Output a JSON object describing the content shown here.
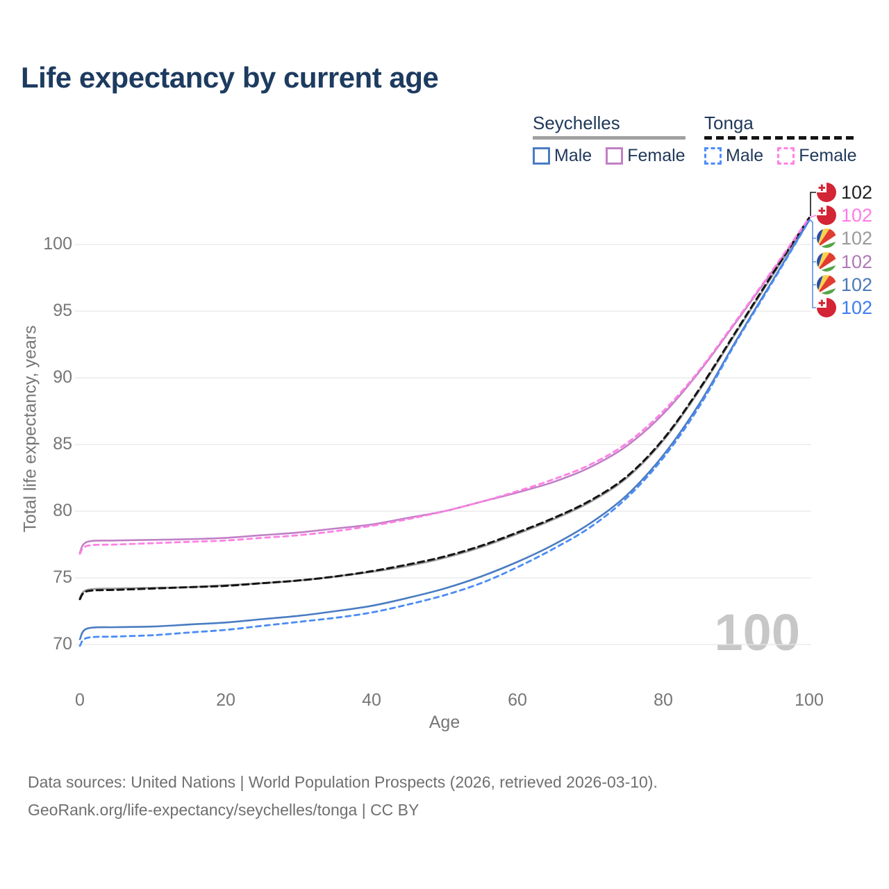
{
  "legend": {
    "groups": [
      {
        "label": "Seychelles",
        "line_style": "solid",
        "underline_color": "#a0a0a0",
        "items": [
          {
            "label": "Male",
            "color": "#4a7cc2"
          },
          {
            "label": "Female",
            "color": "#c17fc6"
          }
        ]
      },
      {
        "label": "Tonga",
        "line_style": "dashed",
        "underline_color": "#141414",
        "items": [
          {
            "label": "Male",
            "color": "#4b8cf5"
          },
          {
            "label": "Female",
            "color": "#ff80e4"
          }
        ]
      }
    ]
  },
  "chart_data": {
    "type": "line",
    "title": "Life expectancy by current age",
    "xlabel": "Age",
    "ylabel": "Total life expectancy, years",
    "xlim": [
      0,
      100
    ],
    "ylim": [
      69,
      103
    ],
    "xticks": [
      0,
      20,
      40,
      60,
      80,
      100
    ],
    "yticks": [
      70,
      75,
      80,
      85,
      90,
      95,
      100
    ],
    "grid": "horizontal",
    "legend_position": "top-right",
    "watermark": "100",
    "ages": [
      0,
      1,
      5,
      10,
      15,
      20,
      25,
      30,
      35,
      40,
      45,
      50,
      55,
      60,
      65,
      70,
      75,
      80,
      85,
      90,
      95,
      100
    ],
    "series": [
      {
        "name": "Seychelles Both sexes",
        "country": "Seychelles",
        "line": "solid",
        "color": "#9d9d9d",
        "width": 2.8,
        "values": [
          73.5,
          74.1,
          74.2,
          74.25,
          74.3,
          74.45,
          74.6,
          74.8,
          75.1,
          75.45,
          75.9,
          76.5,
          77.3,
          78.3,
          79.4,
          80.7,
          82.5,
          85.3,
          89.1,
          93.4,
          97.7,
          101.9
        ]
      },
      {
        "name": "Seychelles Female",
        "country": "Seychelles",
        "line": "solid",
        "color": "#c17fc6",
        "width": 2.6,
        "values": [
          76.9,
          77.7,
          77.8,
          77.85,
          77.9,
          78.0,
          78.2,
          78.4,
          78.7,
          79.0,
          79.5,
          80.0,
          80.7,
          81.4,
          82.2,
          83.3,
          84.9,
          87.3,
          90.5,
          94.2,
          98.0,
          101.9
        ]
      },
      {
        "name": "Seychelles Male",
        "country": "Seychelles",
        "line": "solid",
        "color": "#4a7cc2",
        "width": 2.6,
        "values": [
          70.4,
          71.2,
          71.3,
          71.35,
          71.5,
          71.65,
          71.9,
          72.15,
          72.5,
          72.9,
          73.5,
          74.2,
          75.1,
          76.2,
          77.5,
          79.1,
          81.2,
          84.2,
          88.1,
          92.8,
          97.3,
          101.8
        ]
      },
      {
        "name": "Tonga Both sexes",
        "country": "Tonga",
        "line": "dashed",
        "color": "#141414",
        "width": 3.0,
        "values": [
          73.4,
          74.0,
          74.1,
          74.2,
          74.3,
          74.4,
          74.6,
          74.8,
          75.1,
          75.5,
          76.0,
          76.6,
          77.4,
          78.4,
          79.5,
          80.8,
          82.6,
          85.4,
          89.2,
          93.5,
          97.8,
          102.0
        ]
      },
      {
        "name": "Tonga Female",
        "country": "Tonga",
        "line": "dashed",
        "color": "#ff80e4",
        "width": 2.8,
        "values": [
          76.8,
          77.4,
          77.5,
          77.6,
          77.7,
          77.8,
          78.0,
          78.2,
          78.5,
          78.9,
          79.4,
          80.0,
          80.7,
          81.5,
          82.4,
          83.5,
          85.1,
          87.5,
          90.6,
          94.3,
          98.1,
          102.0
        ]
      },
      {
        "name": "Tonga Male",
        "country": "Tonga",
        "line": "dashed",
        "color": "#4b8cf5",
        "width": 2.8,
        "values": [
          69.9,
          70.5,
          70.6,
          70.7,
          70.9,
          71.1,
          71.4,
          71.7,
          72.0,
          72.4,
          73.0,
          73.7,
          74.6,
          75.8,
          77.2,
          78.8,
          81.0,
          84.0,
          87.9,
          92.7,
          97.2,
          101.8
        ]
      }
    ],
    "end_labels": [
      {
        "value": "102",
        "flag": "tonga",
        "color": "#222222"
      },
      {
        "value": "102",
        "flag": "tonga",
        "color": "#ff7ae8"
      },
      {
        "value": "102",
        "flag": "seychelles",
        "color": "#9a9a9a"
      },
      {
        "value": "102",
        "flag": "seychelles",
        "color": "#b07ab8"
      },
      {
        "value": "102",
        "flag": "seychelles",
        "color": "#4c79b8"
      },
      {
        "value": "102",
        "flag": "tonga",
        "color": "#3d7ef0"
      }
    ]
  },
  "footer": {
    "line1": "Data sources: United Nations | World Population Prospects (2026, retrieved 2026-03-10).",
    "line2": "GeoRank.org/life-expectancy/seychelles/tonga | CC BY"
  }
}
